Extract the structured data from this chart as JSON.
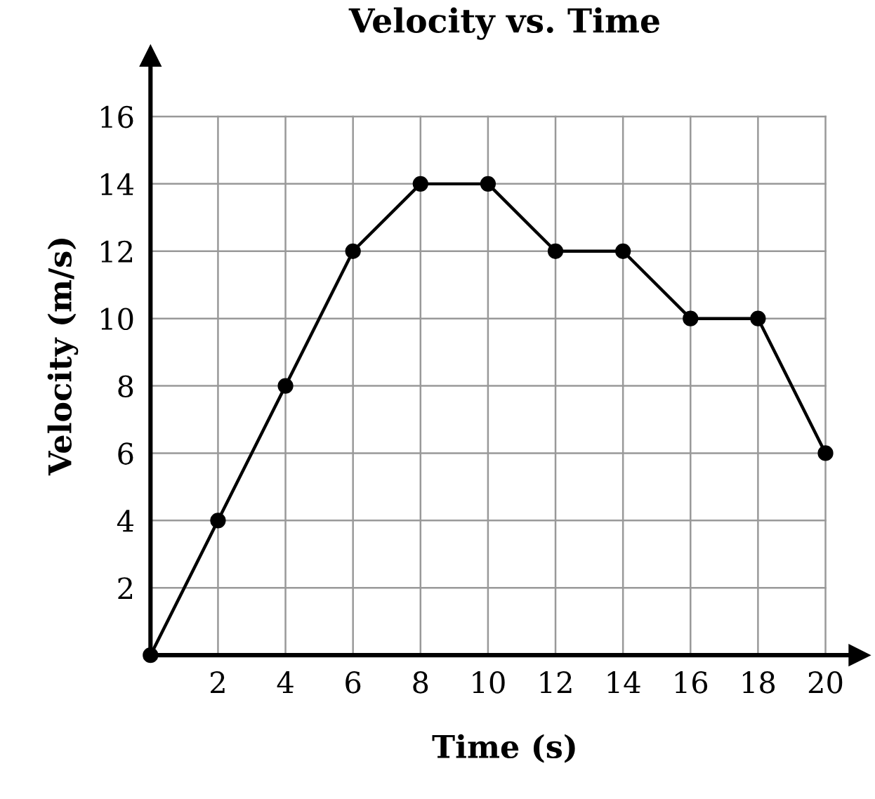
{
  "chart_data": {
    "type": "line",
    "title": "Velocity vs. Time",
    "xlabel": "Time (s)",
    "ylabel": "Velocity (m/s)",
    "x": [
      0,
      2,
      4,
      6,
      8,
      10,
      12,
      14,
      16,
      18,
      20
    ],
    "series": [
      {
        "color": "#000000",
        "values": [
          0,
          4,
          8,
          12,
          14,
          14,
          12,
          12,
          10,
          10,
          6
        ]
      }
    ],
    "xlim": [
      0,
      21
    ],
    "ylim": [
      0,
      17.8
    ],
    "xticks": [
      2,
      4,
      6,
      8,
      10,
      12,
      14,
      16,
      18,
      20
    ],
    "yticks": [
      2,
      4,
      6,
      8,
      10,
      12,
      14,
      16
    ],
    "grid": true,
    "marker": "circle",
    "line_style": "solid"
  }
}
